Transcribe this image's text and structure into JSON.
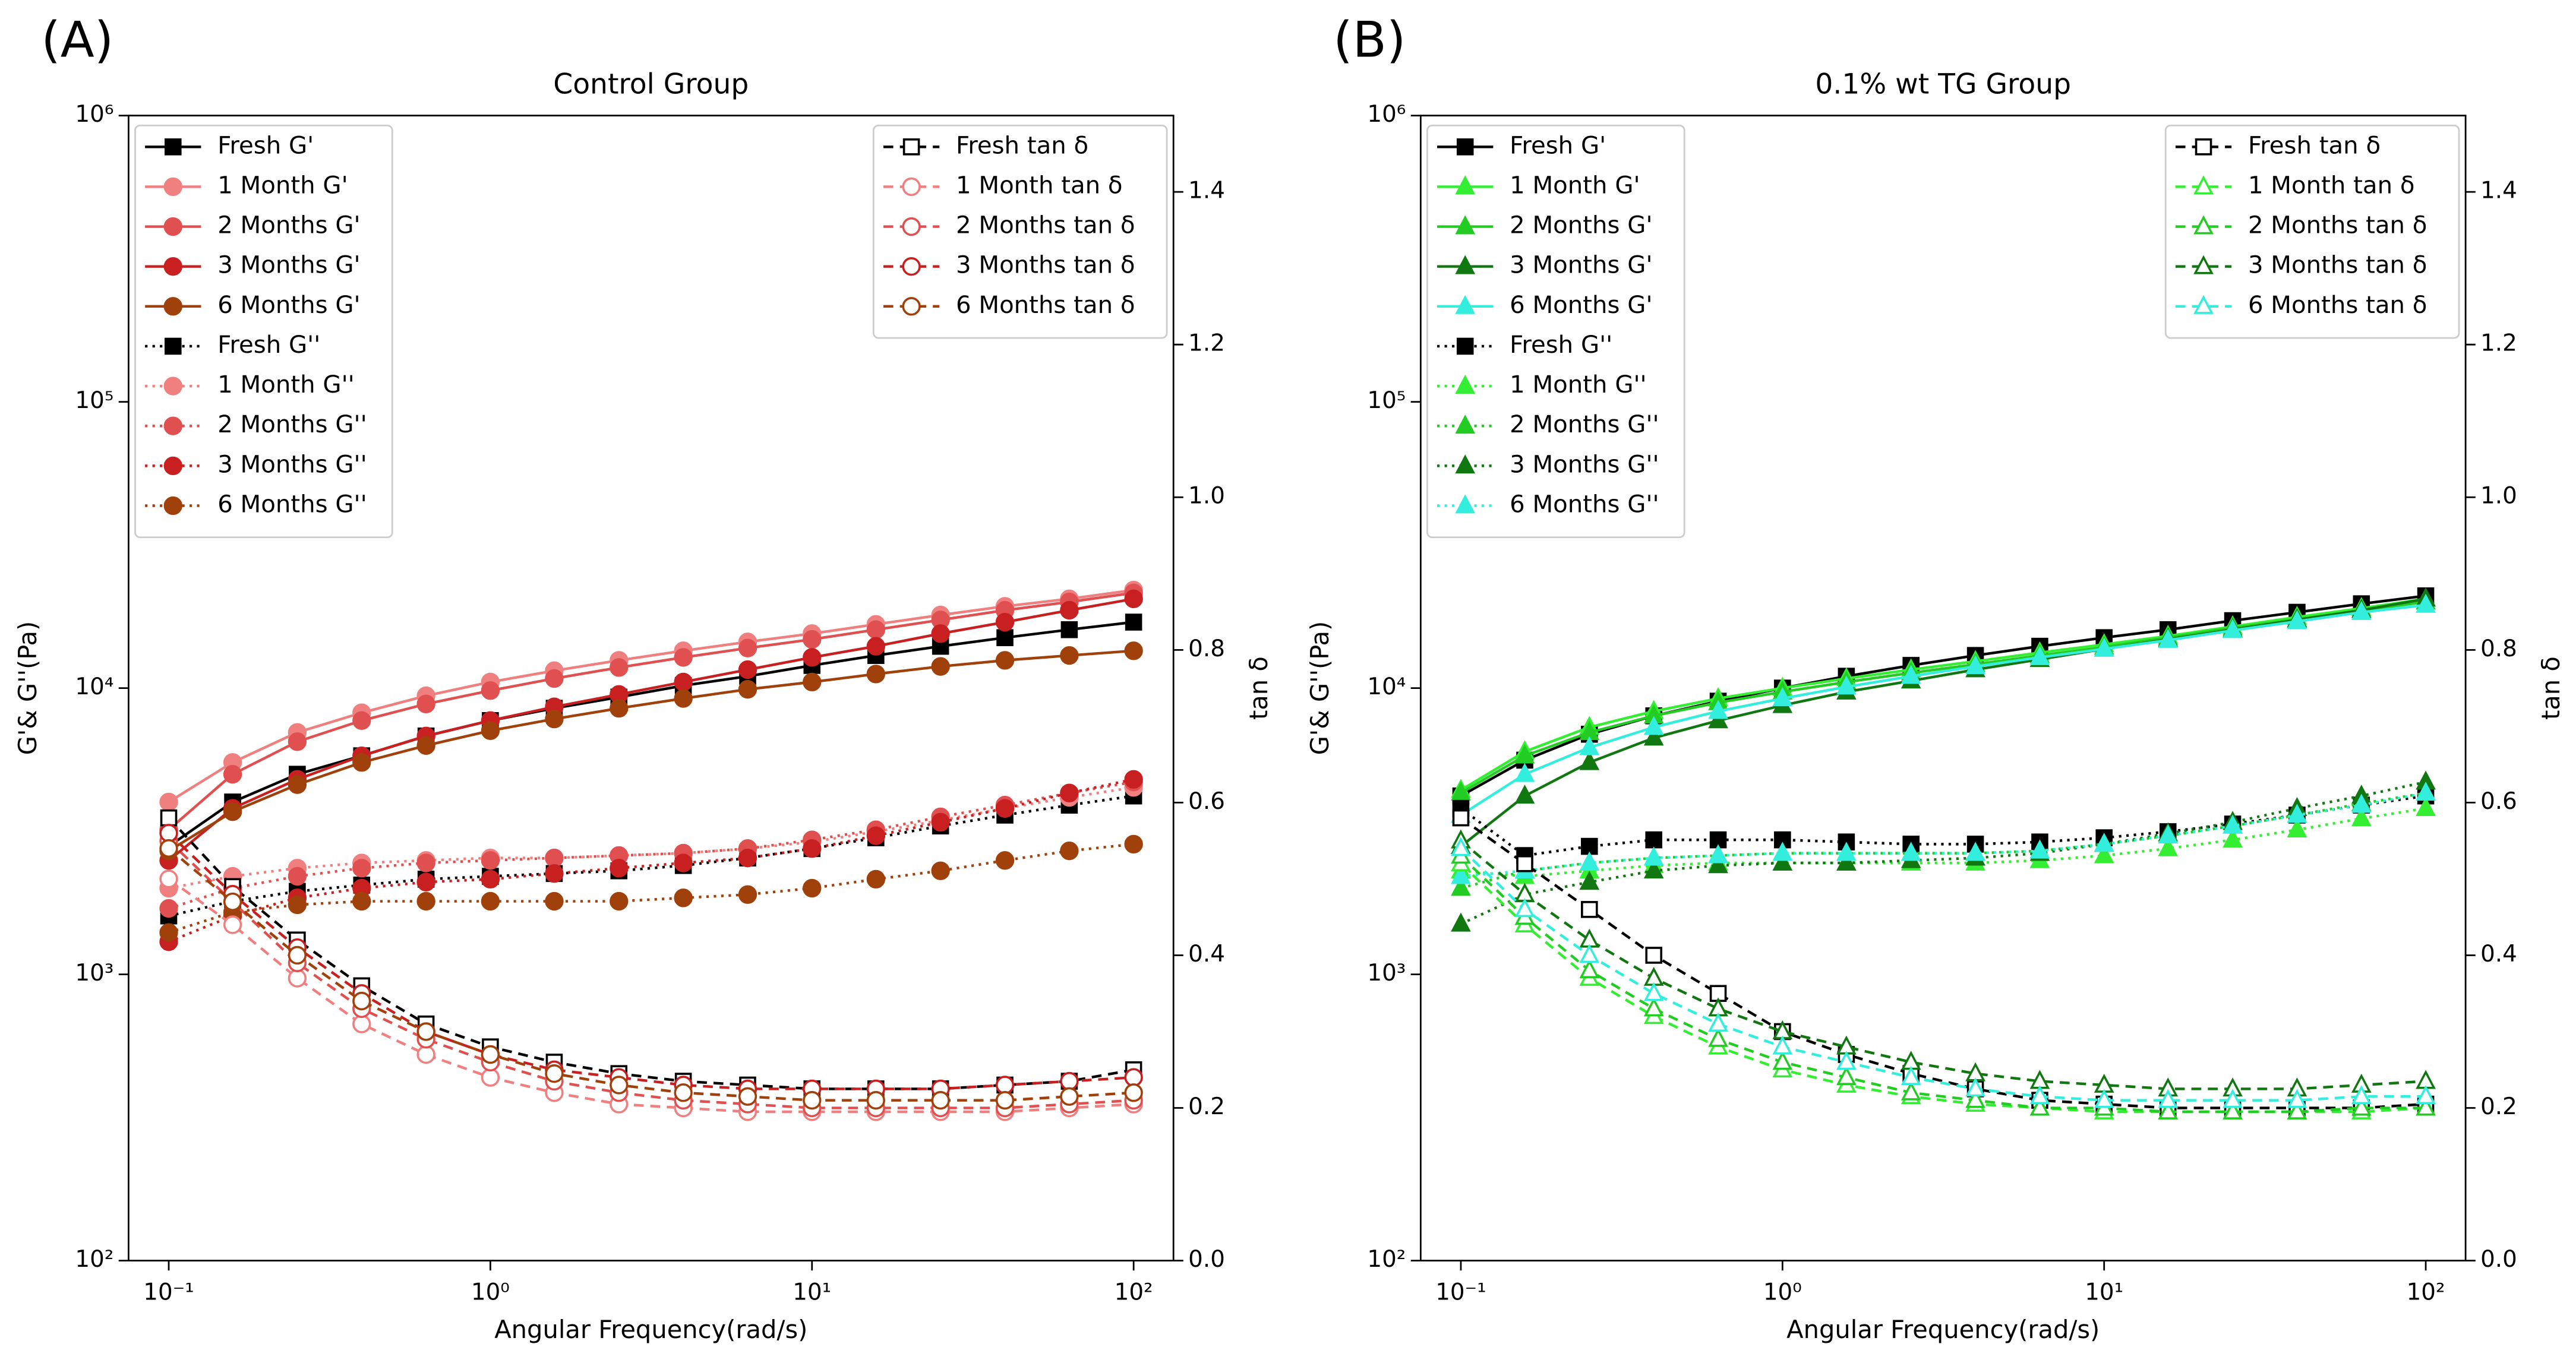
{
  "chart_data": [
    {
      "type": "line",
      "panel_label": "(A)",
      "title": "Control Group",
      "xlabel": "Angular Frequency(rad/s)",
      "ylabel": "G'& G''(Pa)",
      "y2label": "tan δ",
      "xscale": "log",
      "yscale": "log",
      "x": [
        0.1,
        0.158,
        0.251,
        0.398,
        0.631,
        1,
        1.58,
        2.51,
        3.98,
        6.31,
        10,
        15.8,
        25.1,
        39.8,
        63.1,
        100
      ],
      "xlim": [
        0.075,
        133
      ],
      "ylim": [
        100,
        1000000
      ],
      "y2lim": [
        0,
        1.5
      ],
      "xticks": [
        {
          "value": 0.1,
          "label": "10⁻¹"
        },
        {
          "value": 1,
          "label": "10⁰"
        },
        {
          "value": 10,
          "label": "10¹"
        },
        {
          "value": 100,
          "label": "10²"
        }
      ],
      "yticks": [
        {
          "value": 100,
          "label": "10²"
        },
        {
          "value": 1000,
          "label": "10³"
        },
        {
          "value": 10000,
          "label": "10⁴"
        },
        {
          "value": 100000,
          "label": "10⁵"
        },
        {
          "value": 1000000,
          "label": "10⁶"
        }
      ],
      "y2ticks": [
        {
          "value": 0,
          "label": "0.0"
        },
        0.2,
        0.4,
        0.6,
        0.8,
        {
          "value": 1,
          "label": "1.0"
        },
        1.2,
        1.4
      ],
      "legend_loc": {
        "y": "upper left",
        "y2": "upper right"
      },
      "series": [
        {
          "name": "Fresh G'",
          "color": "#000000",
          "marker": "square",
          "linestyle": "solid",
          "marker_fill": true,
          "values": [
            2800,
            4000,
            5000,
            5800,
            6800,
            7700,
            8500,
            9300,
            10200,
            11000,
            12000,
            13000,
            14000,
            15000,
            16000,
            17000
          ]
        },
        {
          "name": "1 Month G'",
          "color": "#f08080",
          "marker": "circle",
          "linestyle": "solid",
          "marker_fill": true,
          "values": [
            4000,
            5500,
            7000,
            8200,
            9400,
            10500,
            11500,
            12500,
            13500,
            14500,
            15500,
            16700,
            18000,
            19300,
            20500,
            22000
          ]
        },
        {
          "name": "2 Months G'",
          "color": "#e05050",
          "marker": "circle",
          "linestyle": "solid",
          "marker_fill": true,
          "values": [
            3200,
            5000,
            6500,
            7700,
            8800,
            9800,
            10800,
            11800,
            12800,
            13800,
            14800,
            16000,
            17300,
            18700,
            20000,
            21500
          ]
        },
        {
          "name": "3 Months G'",
          "color": "#c82020",
          "marker": "circle",
          "linestyle": "solid",
          "marker_fill": true,
          "values": [
            2500,
            3800,
            4800,
            5800,
            6800,
            7700,
            8600,
            9500,
            10500,
            11600,
            12800,
            14000,
            15500,
            17000,
            18700,
            20500
          ]
        },
        {
          "name": "6 Months G'",
          "color": "#a0400a",
          "marker": "circle",
          "linestyle": "solid",
          "marker_fill": true,
          "values": [
            2700,
            3700,
            4600,
            5500,
            6300,
            7100,
            7800,
            8500,
            9200,
            9900,
            10500,
            11200,
            11900,
            12500,
            13000,
            13500
          ]
        },
        {
          "name": "Fresh G''",
          "color": "#000000",
          "marker": "square",
          "linestyle": "dotted",
          "marker_fill": true,
          "values": [
            1600,
            1800,
            1950,
            2050,
            2150,
            2200,
            2250,
            2300,
            2400,
            2550,
            2750,
            3000,
            3300,
            3600,
            3900,
            4200
          ]
        },
        {
          "name": "1 Month G''",
          "color": "#f08080",
          "marker": "circle",
          "linestyle": "dotted",
          "marker_fill": true,
          "values": [
            2000,
            2200,
            2350,
            2450,
            2500,
            2550,
            2550,
            2600,
            2650,
            2750,
            2900,
            3150,
            3450,
            3800,
            4150,
            4500
          ]
        },
        {
          "name": "2 Months G''",
          "color": "#e05050",
          "marker": "circle",
          "linestyle": "dotted",
          "marker_fill": true,
          "values": [
            1700,
            2000,
            2200,
            2350,
            2450,
            2500,
            2550,
            2600,
            2650,
            2750,
            2950,
            3200,
            3550,
            3900,
            4300,
            4700
          ]
        },
        {
          "name": "3 Months G''",
          "color": "#c82020",
          "marker": "circle",
          "linestyle": "dotted",
          "marker_fill": true,
          "values": [
            1300,
            1600,
            1850,
            2000,
            2100,
            2150,
            2250,
            2350,
            2450,
            2550,
            2750,
            3050,
            3400,
            3800,
            4300,
            4800
          ]
        },
        {
          "name": "6 Months G''",
          "color": "#a0400a",
          "marker": "circle",
          "linestyle": "dotted",
          "marker_fill": true,
          "values": [
            1400,
            1650,
            1750,
            1800,
            1800,
            1800,
            1800,
            1800,
            1850,
            1900,
            2000,
            2150,
            2300,
            2500,
            2700,
            2850
          ]
        },
        {
          "name": "Fresh tan δ",
          "color": "#000000",
          "marker": "square",
          "linestyle": "dashed",
          "marker_fill": false,
          "axis": "y2",
          "values": [
            0.58,
            0.49,
            0.42,
            0.36,
            0.31,
            0.28,
            0.26,
            0.245,
            0.235,
            0.23,
            0.225,
            0.225,
            0.225,
            0.23,
            0.235,
            0.25
          ]
        },
        {
          "name": "1 Month tan δ",
          "color": "#f08080",
          "marker": "circle",
          "linestyle": "dashed",
          "marker_fill": false,
          "axis": "y2",
          "values": [
            0.5,
            0.44,
            0.37,
            0.31,
            0.27,
            0.24,
            0.22,
            0.205,
            0.2,
            0.195,
            0.195,
            0.195,
            0.195,
            0.195,
            0.2,
            0.205
          ]
        },
        {
          "name": "2 Months tan δ",
          "color": "#e05050",
          "marker": "circle",
          "linestyle": "dashed",
          "marker_fill": false,
          "axis": "y2",
          "values": [
            0.55,
            0.47,
            0.39,
            0.33,
            0.29,
            0.26,
            0.235,
            0.22,
            0.21,
            0.205,
            0.2,
            0.2,
            0.2,
            0.2,
            0.205,
            0.21
          ]
        },
        {
          "name": "3 Months tan δ",
          "color": "#c82020",
          "marker": "circle",
          "linestyle": "dashed",
          "marker_fill": false,
          "axis": "y2",
          "values": [
            0.56,
            0.48,
            0.41,
            0.35,
            0.3,
            0.27,
            0.25,
            0.24,
            0.23,
            0.225,
            0.225,
            0.225,
            0.225,
            0.23,
            0.235,
            0.24
          ]
        },
        {
          "name": "6 Months tan δ",
          "color": "#a0400a",
          "marker": "circle",
          "linestyle": "dashed",
          "marker_fill": false,
          "axis": "y2",
          "values": [
            0.54,
            0.47,
            0.4,
            0.34,
            0.3,
            0.27,
            0.245,
            0.23,
            0.22,
            0.215,
            0.21,
            0.21,
            0.21,
            0.21,
            0.215,
            0.22
          ]
        }
      ]
    },
    {
      "type": "line",
      "panel_label": "(B)",
      "title": "0.1% wt TG Group",
      "xlabel": "Angular Frequency(rad/s)",
      "ylabel": "G'& G''(Pa)",
      "y2label": "tan δ",
      "xscale": "log",
      "yscale": "log",
      "x": [
        0.1,
        0.158,
        0.251,
        0.398,
        0.631,
        1,
        1.58,
        2.51,
        3.98,
        6.31,
        10,
        15.8,
        25.1,
        39.8,
        63.1,
        100
      ],
      "xlim": [
        0.075,
        133
      ],
      "ylim": [
        100,
        1000000
      ],
      "y2lim": [
        0,
        1.5
      ],
      "xticks": [
        {
          "value": 0.1,
          "label": "10⁻¹"
        },
        {
          "value": 1,
          "label": "10⁰"
        },
        {
          "value": 10,
          "label": "10¹"
        },
        {
          "value": 100,
          "label": "10²"
        }
      ],
      "yticks": [
        {
          "value": 100,
          "label": "10²"
        },
        {
          "value": 1000,
          "label": "10³"
        },
        {
          "value": 10000,
          "label": "10⁴"
        },
        {
          "value": 100000,
          "label": "10⁵"
        },
        {
          "value": 1000000,
          "label": "10⁶"
        }
      ],
      "y2ticks": [
        {
          "value": 0,
          "label": "0.0"
        },
        0.2,
        0.4,
        0.6,
        0.8,
        {
          "value": 1,
          "label": "1.0"
        },
        1.2,
        1.4
      ],
      "legend_loc": {
        "y": "upper left",
        "y2": "upper right"
      },
      "series": [
        {
          "name": "Fresh G'",
          "color": "#000000",
          "marker": "square",
          "linestyle": "solid",
          "marker_fill": true,
          "values": [
            4200,
            5600,
            6900,
            8000,
            9000,
            10000,
            11000,
            12000,
            13000,
            14000,
            15000,
            16000,
            17200,
            18400,
            19700,
            21000
          ]
        },
        {
          "name": "1 Month G'",
          "color": "#33ee33",
          "marker": "triangle",
          "linestyle": "solid",
          "marker_fill": true,
          "values": [
            4400,
            6000,
            7300,
            8300,
            9200,
            10000,
            10800,
            11600,
            12400,
            13300,
            14200,
            15200,
            16400,
            17700,
            19000,
            20500
          ]
        },
        {
          "name": "2 Months G'",
          "color": "#22cc22",
          "marker": "triangle",
          "linestyle": "solid",
          "marker_fill": true,
          "values": [
            4300,
            5800,
            7000,
            8000,
            8900,
            9700,
            10500,
            11300,
            12100,
            13000,
            13900,
            15000,
            16200,
            17400,
            18700,
            20000
          ]
        },
        {
          "name": "3 Months G'",
          "color": "#117711",
          "marker": "triangle",
          "linestyle": "solid",
          "marker_fill": true,
          "values": [
            2800,
            4200,
            5500,
            6700,
            7700,
            8700,
            9700,
            10600,
            11600,
            12600,
            13700,
            14800,
            16000,
            17300,
            18700,
            20500
          ]
        },
        {
          "name": "6 Months G'",
          "color": "#33eedd",
          "marker": "triangle",
          "linestyle": "solid",
          "marker_fill": true,
          "values": [
            3600,
            5000,
            6200,
            7300,
            8300,
            9200,
            10100,
            11000,
            11900,
            12800,
            13700,
            14700,
            15900,
            17100,
            18400,
            19500
          ]
        },
        {
          "name": "Fresh G''",
          "color": "#000000",
          "marker": "square",
          "linestyle": "dotted",
          "marker_fill": true,
          "values": [
            3800,
            2600,
            2800,
            2950,
            2950,
            2950,
            2900,
            2850,
            2850,
            2900,
            3000,
            3150,
            3350,
            3600,
            3900,
            4200
          ]
        },
        {
          "name": "1 Month G''",
          "color": "#33ee33",
          "marker": "triangle",
          "linestyle": "dotted",
          "marker_fill": true,
          "values": [
            2300,
            2200,
            2300,
            2400,
            2450,
            2450,
            2450,
            2450,
            2450,
            2500,
            2600,
            2750,
            2950,
            3200,
            3500,
            3800
          ]
        },
        {
          "name": "2 Months G''",
          "color": "#22cc22",
          "marker": "triangle",
          "linestyle": "dotted",
          "marker_fill": true,
          "values": [
            2000,
            2300,
            2450,
            2550,
            2600,
            2650,
            2650,
            2650,
            2650,
            2700,
            2850,
            3050,
            3300,
            3600,
            3950,
            4300
          ]
        },
        {
          "name": "3 Months G''",
          "color": "#117711",
          "marker": "triangle",
          "linestyle": "dotted",
          "marker_fill": true,
          "values": [
            1500,
            1900,
            2100,
            2300,
            2400,
            2450,
            2450,
            2500,
            2550,
            2650,
            2850,
            3100,
            3400,
            3800,
            4200,
            4700
          ]
        },
        {
          "name": "6 Months G''",
          "color": "#33eedd",
          "marker": "triangle",
          "linestyle": "dotted",
          "marker_fill": true,
          "values": [
            2200,
            2300,
            2450,
            2550,
            2600,
            2650,
            2650,
            2650,
            2650,
            2700,
            2850,
            3050,
            3300,
            3600,
            3900,
            4300
          ]
        },
        {
          "name": "Fresh tan δ",
          "color": "#000000",
          "marker": "square",
          "linestyle": "dashed",
          "marker_fill": false,
          "axis": "y2",
          "values": [
            0.58,
            0.52,
            0.46,
            0.4,
            0.35,
            0.3,
            0.27,
            0.245,
            0.225,
            0.21,
            0.205,
            0.2,
            0.2,
            0.2,
            0.2,
            0.205
          ]
        },
        {
          "name": "1 Month tan δ",
          "color": "#33ee33",
          "marker": "triangle",
          "linestyle": "dashed",
          "marker_fill": false,
          "axis": "y2",
          "values": [
            0.52,
            0.44,
            0.37,
            0.32,
            0.28,
            0.25,
            0.23,
            0.215,
            0.205,
            0.2,
            0.195,
            0.195,
            0.195,
            0.195,
            0.195,
            0.2
          ]
        },
        {
          "name": "2 Months tan δ",
          "color": "#22cc22",
          "marker": "triangle",
          "linestyle": "dashed",
          "marker_fill": false,
          "axis": "y2",
          "values": [
            0.53,
            0.45,
            0.38,
            0.33,
            0.29,
            0.26,
            0.24,
            0.22,
            0.21,
            0.2,
            0.2,
            0.195,
            0.195,
            0.195,
            0.2,
            0.2
          ]
        },
        {
          "name": "3 Months tan δ",
          "color": "#117711",
          "marker": "triangle",
          "linestyle": "dashed",
          "marker_fill": false,
          "axis": "y2",
          "values": [
            0.55,
            0.48,
            0.42,
            0.37,
            0.33,
            0.3,
            0.28,
            0.26,
            0.245,
            0.235,
            0.23,
            0.225,
            0.225,
            0.225,
            0.23,
            0.235
          ]
        },
        {
          "name": "6 Months tan δ",
          "color": "#33eedd",
          "marker": "triangle",
          "linestyle": "dashed",
          "marker_fill": false,
          "axis": "y2",
          "values": [
            0.54,
            0.46,
            0.4,
            0.35,
            0.31,
            0.28,
            0.26,
            0.24,
            0.225,
            0.215,
            0.21,
            0.21,
            0.21,
            0.21,
            0.215,
            0.215
          ]
        }
      ]
    }
  ]
}
